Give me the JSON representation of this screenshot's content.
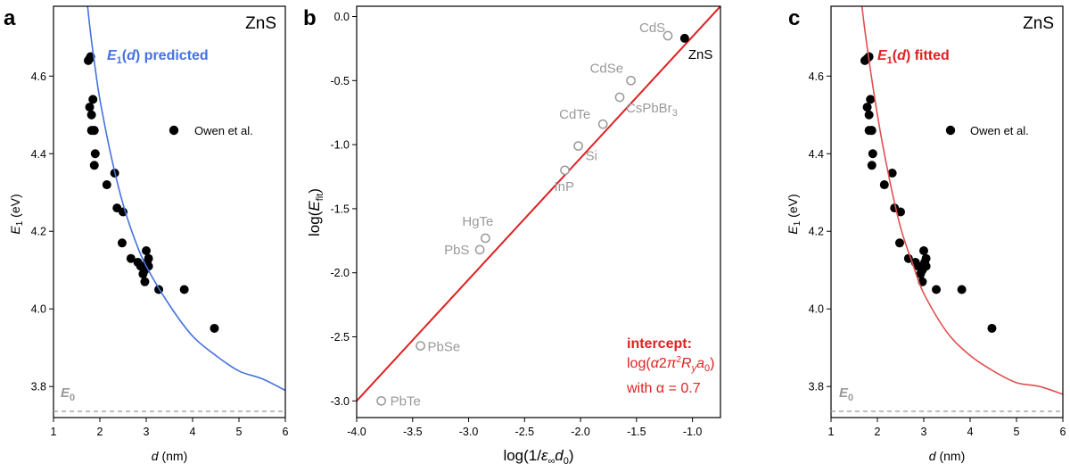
{
  "figure": {
    "panels": [
      {
        "id": "a",
        "letter": "a",
        "material": "ZnS",
        "curve_label_main": "E1(d) predicted",
        "curve_label_sub": "",
        "legend_label": "Owen et al.",
        "xlabel": "d (nm)",
        "ylabel": "E1 (eV)",
        "e0_label": "E0"
      },
      {
        "id": "b",
        "letter": "b",
        "xlabel": "log(1/ε∞d0)",
        "ylabel": "log(Efit)",
        "annotation": {
          "line1": "intercept:",
          "line2": "log(α2π²Ryα0)",
          "line3": "with α = 0.7"
        }
      },
      {
        "id": "c",
        "letter": "c",
        "material": "ZnS",
        "curve_label_main": "E1(d) fitted",
        "legend_label": "Owen et al.",
        "xlabel": "d (nm)",
        "ylabel": "E1 (eV)",
        "e0_label": "E0"
      }
    ]
  },
  "chart_data": [
    {
      "type": "scatter",
      "panel": "a",
      "title": "",
      "xlabel": "d (nm)",
      "ylabel": "E1 (eV)",
      "xlim": [
        1,
        6
      ],
      "ylim": [
        3.72,
        4.78
      ],
      "xticks": [
        1,
        2,
        3,
        4,
        5,
        6
      ],
      "yticks": [
        3.8,
        4.0,
        4.2,
        4.4,
        4.6
      ],
      "xtick_labels": [
        "1",
        "2",
        "3",
        "4",
        "5",
        "6"
      ],
      "ytick_labels": [
        "3.8",
        "4.0",
        "4.2",
        "4.4",
        "4.6"
      ],
      "grid": false,
      "legend": "right-middle",
      "e0": 3.725,
      "series": [
        {
          "name": "Owen et al.",
          "kind": "points",
          "color": "#000000",
          "x": [
            1.75,
            1.78,
            1.8,
            1.85,
            1.78,
            1.82,
            1.82,
            1.87,
            1.88,
            1.88,
            1.9,
            2.15,
            2.32,
            2.37,
            2.5,
            2.48,
            2.67,
            2.82,
            2.88,
            2.93,
            2.97,
            2.97,
            3.0,
            3.02,
            3.05,
            3.05,
            3.27,
            3.82,
            4.47
          ],
          "y": [
            4.64,
            4.645,
            4.65,
            4.54,
            4.52,
            4.5,
            4.46,
            4.46,
            4.46,
            4.37,
            4.4,
            4.32,
            4.35,
            4.26,
            4.25,
            4.17,
            4.13,
            4.12,
            4.11,
            4.09,
            4.07,
            4.1,
            4.15,
            4.12,
            4.13,
            4.11,
            4.05,
            4.05,
            3.95
          ]
        },
        {
          "name": "E1(d) predicted",
          "kind": "curve",
          "color": "#4472e0",
          "x": [
            1.7,
            1.8,
            1.9,
            2.0,
            2.25,
            2.5,
            2.75,
            3.0,
            3.5,
            4.0,
            4.5,
            5.0,
            5.5,
            6.0
          ],
          "y": [
            4.82,
            4.71,
            4.62,
            4.54,
            4.39,
            4.27,
            4.18,
            4.11,
            4.01,
            3.93,
            3.88,
            3.84,
            3.82,
            3.79
          ]
        }
      ]
    },
    {
      "type": "scatter",
      "panel": "b",
      "title": "",
      "xlabel": "log(1/ε∞d0)",
      "ylabel": "log(Efit)",
      "xlim": [
        -4.0,
        -0.75
      ],
      "ylim": [
        -3.13,
        0.08
      ],
      "xticks": [
        -4.0,
        -3.5,
        -3.0,
        -2.5,
        -2.0,
        -1.5,
        -1.0
      ],
      "yticks": [
        -3.0,
        -2.5,
        -2.0,
        -1.5,
        -1.0,
        -0.5,
        0.0
      ],
      "xtick_labels": [
        "-4.0",
        "-3.5",
        "-3.0",
        "-2.5",
        "-2.0",
        "-1.5",
        "-1.0"
      ],
      "ytick_labels": [
        "-3.0",
        "-2.5",
        "-2.0",
        "-1.5",
        "-1.0",
        "-0.5",
        "0.0"
      ],
      "grid": false,
      "series": [
        {
          "name": "fit line",
          "kind": "line",
          "color": "#e02020",
          "x": [
            -4.0,
            -0.75
          ],
          "y": [
            -3.0,
            0.08
          ]
        },
        {
          "name": "other materials",
          "kind": "open-points",
          "color": "#999999",
          "points": [
            {
              "label": "CdS",
              "x": -1.22,
              "y": -0.15
            },
            {
              "label": "CdSe",
              "x": -1.55,
              "y": -0.5
            },
            {
              "label": "CsPbBr3",
              "x": -1.65,
              "y": -0.63
            },
            {
              "label": "CdTe",
              "x": -1.8,
              "y": -0.84
            },
            {
              "label": "Si",
              "x": -2.02,
              "y": -1.01
            },
            {
              "label": "InP",
              "x": -2.14,
              "y": -1.2
            },
            {
              "label": "HgTe",
              "x": -2.85,
              "y": -1.73
            },
            {
              "label": "PbS",
              "x": -2.9,
              "y": -1.82
            },
            {
              "label": "PbSe",
              "x": -3.43,
              "y": -2.57
            },
            {
              "label": "PbTe",
              "x": -3.78,
              "y": -3.0
            }
          ]
        },
        {
          "name": "ZnS",
          "kind": "points",
          "color": "#000000",
          "points": [
            {
              "label": "ZnS",
              "x": -1.07,
              "y": -0.17
            }
          ]
        }
      ]
    },
    {
      "type": "scatter",
      "panel": "c",
      "title": "",
      "xlabel": "d (nm)",
      "ylabel": "E1 (eV)",
      "xlim": [
        1,
        6
      ],
      "ylim": [
        3.72,
        4.78
      ],
      "xticks": [
        1,
        2,
        3,
        4,
        5,
        6
      ],
      "yticks": [
        3.8,
        4.0,
        4.2,
        4.4,
        4.6
      ],
      "xtick_labels": [
        "1",
        "2",
        "3",
        "4",
        "5",
        "6"
      ],
      "ytick_labels": [
        "3.8",
        "4.0",
        "4.2",
        "4.4",
        "4.6"
      ],
      "grid": false,
      "legend": "right-middle",
      "e0": 3.725,
      "series": [
        {
          "name": "Owen et al.",
          "kind": "points",
          "color": "#000000",
          "x": [
            1.73,
            1.78,
            1.82,
            1.85,
            1.78,
            1.82,
            1.82,
            1.87,
            1.88,
            1.88,
            1.9,
            2.15,
            2.32,
            2.37,
            2.5,
            2.48,
            2.67,
            2.82,
            2.88,
            2.93,
            2.97,
            2.97,
            3.0,
            3.02,
            3.05,
            3.05,
            3.27,
            3.82,
            4.47
          ],
          "y": [
            4.64,
            4.645,
            4.65,
            4.54,
            4.52,
            4.5,
            4.46,
            4.46,
            4.46,
            4.37,
            4.4,
            4.32,
            4.35,
            4.26,
            4.25,
            4.17,
            4.13,
            4.12,
            4.11,
            4.09,
            4.07,
            4.1,
            4.15,
            4.12,
            4.13,
            4.11,
            4.05,
            4.05,
            3.95
          ]
        },
        {
          "name": "E1(d) fitted",
          "kind": "curve",
          "color": "#e05050",
          "x": [
            1.6,
            1.75,
            2.0,
            2.25,
            2.5,
            2.75,
            3.0,
            3.5,
            4.0,
            4.5,
            5.0,
            5.5,
            6.0
          ],
          "y": [
            4.85,
            4.7,
            4.5,
            4.34,
            4.21,
            4.12,
            4.04,
            3.94,
            3.88,
            3.84,
            3.81,
            3.8,
            3.78
          ]
        }
      ]
    }
  ]
}
